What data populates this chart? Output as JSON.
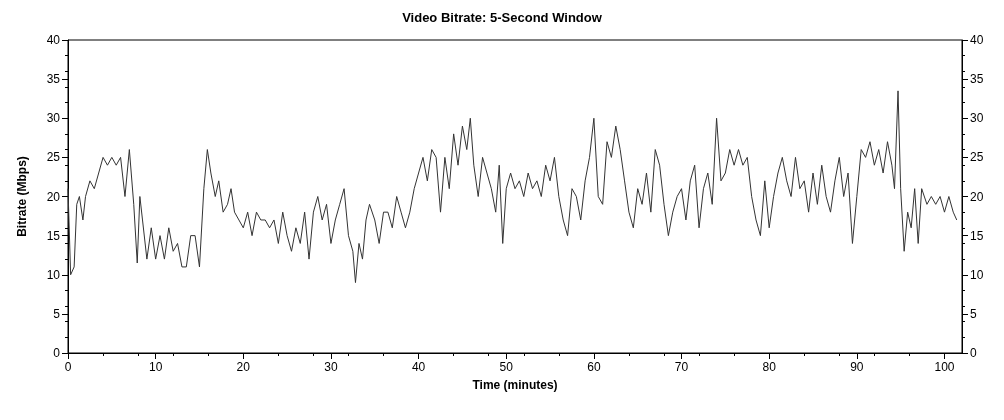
{
  "chart_data": {
    "type": "line",
    "title": "Video Bitrate: 5-Second Window",
    "xlabel": "Time (minutes)",
    "ylabel": "Bitrate (Mbps)",
    "xlim": [
      0,
      102
    ],
    "xticks": [
      0,
      10,
      20,
      30,
      40,
      50,
      60,
      70,
      80,
      90,
      100
    ],
    "ylim": [
      0,
      40
    ],
    "yticks": [
      0,
      5,
      10,
      15,
      20,
      25,
      30,
      35,
      40
    ],
    "y2lim": [
      0,
      40
    ],
    "y2ticks": [
      0,
      5,
      10,
      15,
      20,
      25,
      30,
      35,
      40
    ],
    "grid": false,
    "marker": "none",
    "line_style": "solid",
    "series": [
      {
        "color": "#333333",
        "x": [
          0,
          0.3,
          0.7,
          1,
          1.3,
          1.7,
          2,
          2.5,
          3,
          3.5,
          4,
          4.5,
          5,
          5.5,
          6,
          6.5,
          7,
          7.5,
          7.9,
          8.2,
          8.5,
          9,
          9.5,
          10,
          10.5,
          11,
          11.5,
          12,
          12.5,
          13,
          13.5,
          14,
          14.5,
          15,
          15.5,
          15.9,
          16.3,
          16.8,
          17.2,
          17.7,
          18.2,
          18.6,
          19,
          19.5,
          20,
          20.5,
          21,
          21.5,
          22,
          22.5,
          23,
          23.5,
          24,
          24.5,
          25,
          25.5,
          26,
          26.5,
          27,
          27.5,
          28,
          28.5,
          29,
          29.5,
          30,
          30.5,
          31,
          31.5,
          32,
          32.5,
          32.8,
          33.2,
          33.6,
          34,
          34.4,
          35,
          35.5,
          36,
          36.5,
          37,
          37.5,
          38,
          38.5,
          39,
          39.5,
          40,
          40.5,
          41,
          41.5,
          42,
          42.5,
          43,
          43.5,
          44,
          44.5,
          45,
          45.5,
          45.9,
          46.3,
          46.8,
          47.3,
          47.8,
          48.3,
          48.8,
          49.2,
          49.6,
          50,
          50.5,
          51,
          51.5,
          52,
          52.5,
          53,
          53.5,
          54,
          54.5,
          55,
          55.5,
          56,
          56.5,
          57,
          57.5,
          58,
          58.5,
          59,
          59.5,
          60,
          60.5,
          61,
          61.5,
          62,
          62.5,
          63,
          63.5,
          64,
          64.5,
          65,
          65.5,
          66,
          66.5,
          67,
          67.5,
          68,
          68.5,
          69,
          69.5,
          70,
          70.5,
          71,
          71.5,
          72,
          72.5,
          73,
          73.5,
          74,
          74.5,
          75,
          75.5,
          76,
          76.5,
          77,
          77.5,
          78,
          78.5,
          79,
          79.5,
          80,
          80.5,
          81,
          81.5,
          82,
          82.5,
          83,
          83.5,
          84,
          84.5,
          85,
          85.5,
          86,
          86.5,
          87,
          87.5,
          88,
          88.5,
          89,
          89.5,
          90,
          90.5,
          91,
          91.5,
          92,
          92.5,
          93,
          93.5,
          94,
          94.3,
          94.7,
          95,
          95.4,
          95.8,
          96.2,
          96.6,
          97,
          97.4,
          98,
          98.5,
          99,
          99.5,
          100,
          100.5,
          101,
          101.4
        ],
        "values": [
          21,
          10,
          11,
          19,
          20,
          17,
          20,
          22,
          21,
          23,
          25,
          24,
          25,
          24,
          25,
          20,
          26,
          19,
          11.5,
          20,
          17,
          12,
          16,
          12,
          15,
          12,
          16,
          13,
          14,
          11,
          11,
          15,
          15,
          11,
          21,
          26,
          23,
          20,
          22,
          18,
          19,
          21,
          18,
          17,
          16,
          18,
          15,
          18,
          17,
          17,
          16,
          17,
          14,
          18,
          15,
          13,
          16,
          14,
          18,
          12,
          18,
          20,
          17,
          19,
          14,
          17,
          19,
          21,
          15,
          13,
          9,
          14,
          12,
          17,
          19,
          17,
          14,
          18,
          18,
          16,
          20,
          18,
          16,
          18,
          21,
          23,
          25,
          22,
          26,
          25,
          18,
          25,
          21,
          28,
          24,
          29,
          26,
          30,
          24,
          20,
          25,
          23,
          21,
          18,
          24,
          14,
          21,
          23,
          21,
          22,
          20,
          23,
          21,
          22,
          20,
          24,
          22,
          25,
          20,
          17,
          15,
          21,
          20,
          17,
          22,
          25,
          30,
          20,
          19,
          27,
          25,
          29,
          26,
          22,
          18,
          16,
          21,
          19,
          23,
          18,
          26,
          24,
          19,
          15,
          18,
          20,
          21,
          17,
          22,
          24,
          16,
          21,
          23,
          19,
          30,
          22,
          23,
          26,
          24,
          26,
          24,
          25,
          20,
          17,
          15,
          22,
          16,
          20,
          23,
          25,
          22,
          20,
          25,
          21,
          22,
          18,
          23,
          19,
          24,
          20,
          18,
          22,
          25,
          20,
          23,
          14,
          20,
          26,
          25,
          27,
          24,
          26,
          23,
          27,
          24,
          21,
          33.5,
          21,
          13,
          18,
          16,
          21,
          14,
          21,
          19,
          20,
          19,
          20,
          18,
          20,
          18,
          17
        ]
      }
    ]
  }
}
